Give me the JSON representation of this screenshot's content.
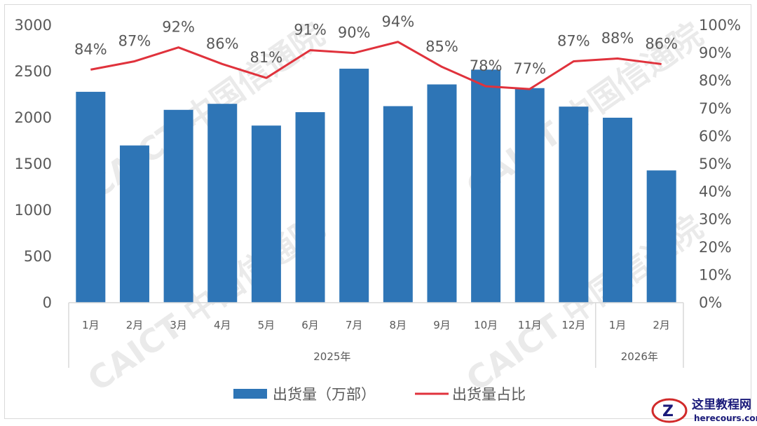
{
  "chart_data": {
    "type": "bar+line",
    "categories": [
      "1月",
      "2月",
      "3月",
      "4月",
      "5月",
      "6月",
      "7月",
      "8月",
      "9月",
      "10月",
      "11月",
      "12月",
      "1月",
      "2月"
    ],
    "groups": [
      {
        "label": "2025年",
        "count": 12
      },
      {
        "label": "2026年",
        "count": 2
      }
    ],
    "series": [
      {
        "name": "出货量（万部）",
        "type": "bar",
        "axis": "left",
        "color": "#2e75b6",
        "values": [
          2280,
          1700,
          2085,
          2150,
          1915,
          2060,
          2530,
          2125,
          2360,
          2520,
          2320,
          2120,
          2000,
          1430
        ]
      },
      {
        "name": "出货量占比",
        "type": "line",
        "axis": "right",
        "color": "#e0323c",
        "values": [
          84,
          87,
          92,
          86,
          81,
          91,
          90,
          94,
          85,
          78,
          77,
          87,
          88,
          86
        ],
        "labels": [
          "84%",
          "87%",
          "92%",
          "86%",
          "81%",
          "91%",
          "90%",
          "94%",
          "85%",
          "78%",
          "77%",
          "87%",
          "88%",
          "86%"
        ]
      }
    ],
    "y_left": {
      "min": 0,
      "max": 3000,
      "ticks": [
        "0",
        "500",
        "1000",
        "1500",
        "2000",
        "2500",
        "3000"
      ]
    },
    "y_right": {
      "min": 0,
      "max": 100,
      "ticks": [
        "0%",
        "10%",
        "20%",
        "30%",
        "40%",
        "50%",
        "60%",
        "70%",
        "80%",
        "90%",
        "100%"
      ]
    },
    "legend_position": "bottom",
    "grid": false
  },
  "watermark": "CAICT 中国信通院",
  "logo": {
    "name": "这里教程网",
    "url_text": "herecours.com"
  }
}
